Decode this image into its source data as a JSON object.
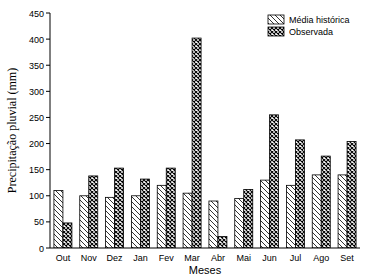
{
  "chart_data": {
    "type": "bar",
    "x_label": "Meses",
    "y_label": "Precipitação pluvial (mm)",
    "categories": [
      "Out",
      "Nov",
      "Dez",
      "Jan",
      "Fev",
      "Mar",
      "Abr",
      "Mai",
      "Jun",
      "Jul",
      "Ago",
      "Set"
    ],
    "series": [
      {
        "name": "Média histórica",
        "color": "#000000",
        "values": [
          110,
          100,
          97,
          100,
          120,
          105,
          90,
          95,
          130,
          120,
          140,
          140
        ]
      },
      {
        "name": "Observada",
        "color": "#000000",
        "values": [
          48,
          138,
          153,
          132,
          153,
          402,
          22,
          112,
          255,
          207,
          176,
          204
        ]
      }
    ],
    "ylim": [
      0,
      450
    ],
    "yticks": [
      0,
      50,
      100,
      150,
      200,
      250,
      300,
      350,
      400,
      450
    ],
    "grid": false,
    "legend": "top-right"
  }
}
